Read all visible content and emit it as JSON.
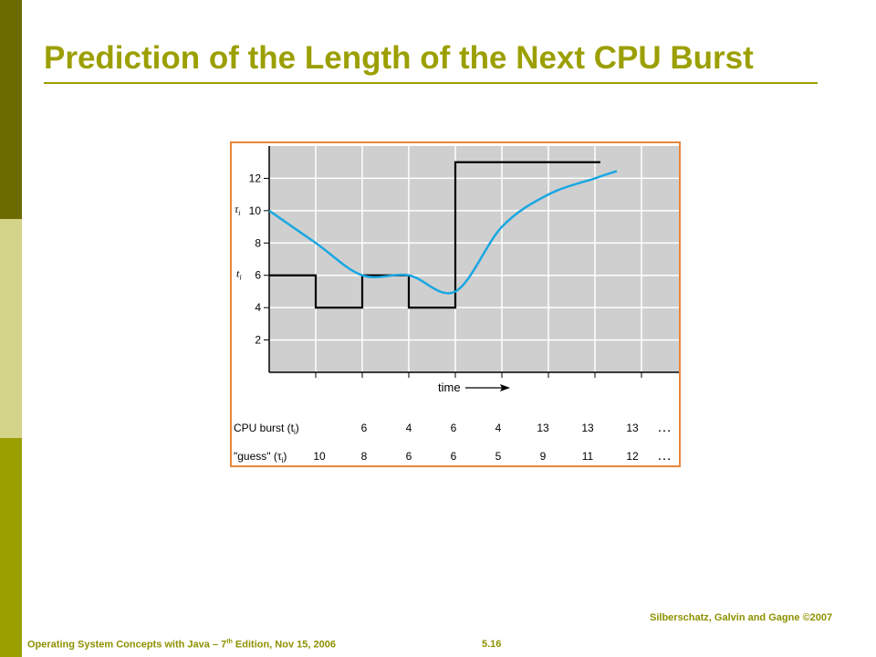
{
  "slide": {
    "title": "Prediction of the Length of the Next CPU Burst"
  },
  "footer": {
    "left_prefix": "Operating System Concepts with Java – 7",
    "left_sup": "th",
    "left_suffix": " Edition, Nov 15, 2006",
    "page": "5.16",
    "right": "Silberschatz, Galvin and Gagne ©2007"
  },
  "chart_data": {
    "type": "line",
    "xlabel": "time",
    "y_ticks": [
      2,
      4,
      6,
      8,
      10,
      12
    ],
    "ylim": [
      0,
      14
    ],
    "grid": true,
    "series_labels": {
      "actual": "t",
      "guess": "τ",
      "subscript": "i"
    },
    "actual_burst_steps": [
      6,
      4,
      6,
      4,
      13,
      13,
      13,
      13
    ],
    "guess_points": [
      10,
      8,
      6,
      6,
      5,
      9,
      11,
      12
    ],
    "colors": {
      "actual": "#000000",
      "guess": "#1aa7e2",
      "plot_bg": "#cfcfcf",
      "grid": "#ffffff",
      "frame": "#e8863a"
    },
    "table": {
      "rows": [
        {
          "label": "CPU burst (t",
          "label_sub": "i",
          "label_end": ")",
          "values": [
            "",
            "6",
            "4",
            "6",
            "4",
            "13",
            "13",
            "13"
          ],
          "ellipsis": "…"
        },
        {
          "label": "\"guess\" (τ",
          "label_sub": "i",
          "label_end": ")",
          "values": [
            "10",
            "8",
            "6",
            "6",
            "5",
            "9",
            "11",
            "12"
          ],
          "ellipsis": "…"
        }
      ]
    }
  }
}
